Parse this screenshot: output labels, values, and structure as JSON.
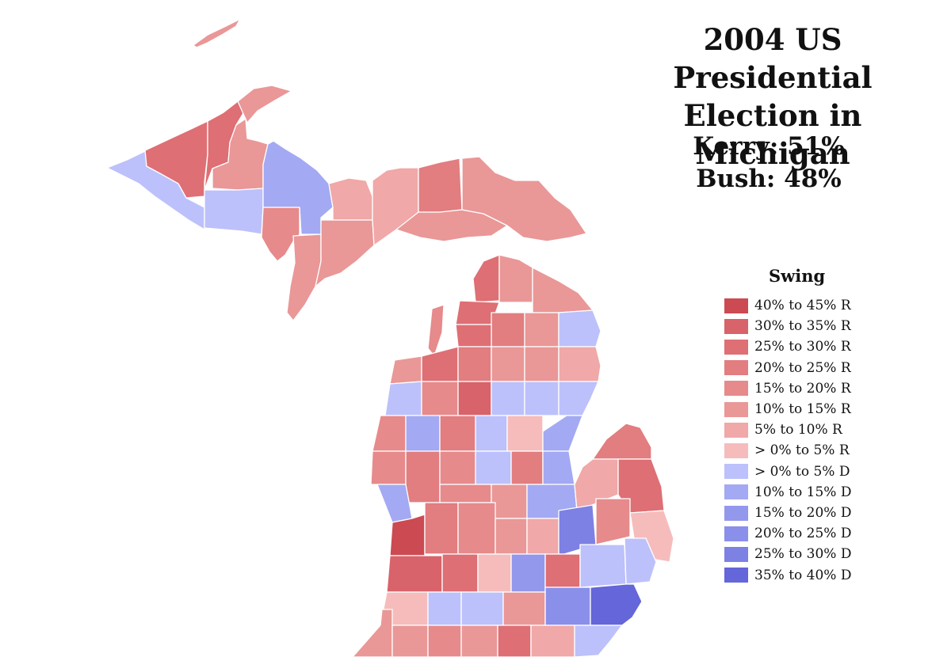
{
  "title_line1": "2004 US Presidential",
  "title_line2": "Election in Michigan",
  "results": {
    "kerry": "Kerry: 51%",
    "bush": "Bush: 48%"
  },
  "legend": {
    "title": "Swing",
    "items": [
      {
        "label": "40% to 45% R",
        "color": "#cc4a52"
      },
      {
        "label": "30% to 35% R",
        "color": "#d8636a"
      },
      {
        "label": "25% to 30% R",
        "color": "#de6f74"
      },
      {
        "label": "20% to 25% R",
        "color": "#e27d80"
      },
      {
        "label": "15% to 20% R",
        "color": "#e68a8c"
      },
      {
        "label": "10% to 15% R",
        "color": "#ea9797"
      },
      {
        "label": "5% to 10% R",
        "color": "#f0a8a8"
      },
      {
        "label": "> 0% to 5% R",
        "color": "#f6bcbc"
      },
      {
        "label": "> 0% to 5% D",
        "color": "#bcc1fb"
      },
      {
        "label": "10% to 15% D",
        "color": "#a3a9f2"
      },
      {
        "label": "15% to 20% D",
        "color": "#9398ed"
      },
      {
        "label": "20% to 25% D",
        "color": "#8a8fea"
      },
      {
        "label": "25% to 30% D",
        "color": "#7d81e3"
      },
      {
        "label": "35% to 40% D",
        "color": "#6466d9"
      }
    ]
  }
}
